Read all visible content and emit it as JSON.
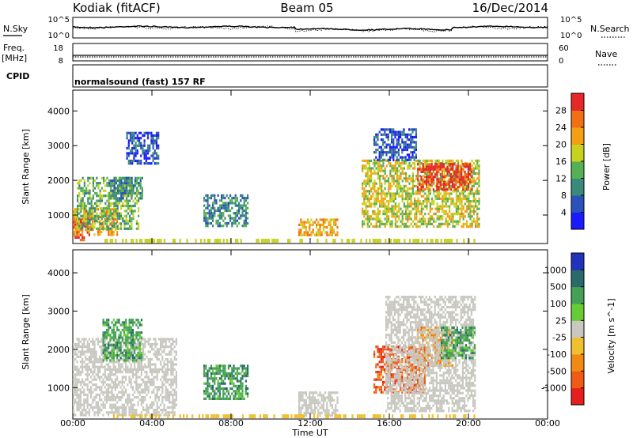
{
  "header": {
    "station": "Kodiak (fitACF)",
    "beam": "Beam 05",
    "date": "16/Dec/2014"
  },
  "status_panels": {
    "nsky_label": "N.Sky",
    "nsky_ticks": [
      "10^5",
      "10^0"
    ],
    "nsearch_label": "N.Search",
    "nsearch_ticks": [
      "10^5",
      "10^0"
    ],
    "freq_label": "Freq.",
    "freq_unit": "[MHz]",
    "freq_ticks": [
      "18",
      "8"
    ],
    "nave_label": "Nave",
    "nave_ticks": [
      "60",
      "0"
    ],
    "cpid_label": "CPID",
    "cpid_value": "normalsound (fast) 157 RF"
  },
  "chart_data": [
    {
      "type": "heatmap",
      "name": "power",
      "ylabel": "Slant Range [km]",
      "xlabel": "Time UT",
      "x_ticks": [
        "00:00",
        "04:00",
        "08:00",
        "12:00",
        "16:00",
        "20:00",
        "00:00"
      ],
      "xlim_hours": [
        0,
        24
      ],
      "y_ticks": [
        "1000",
        "2000",
        "3000",
        "4000"
      ],
      "ylim_km": [
        180,
        4600
      ],
      "colorbar_label": "Power [dB]",
      "colorbar_ticks": [
        "4",
        "8",
        "12",
        "16",
        "20",
        "24",
        "28"
      ],
      "colorbar_colors": [
        "#1a1aff",
        "#2a52b8",
        "#3a8a7a",
        "#55b055",
        "#c8d21e",
        "#f5a014",
        "#f07014",
        "#e62828"
      ],
      "regions": [
        {
          "t": [
            0.0,
            0.8
          ],
          "r": [
            250,
            900
          ],
          "level": 7
        },
        {
          "t": [
            0.0,
            2.2
          ],
          "r": [
            400,
            1200
          ],
          "level": 5
        },
        {
          "t": [
            0.2,
            3.3
          ],
          "r": [
            600,
            2100
          ],
          "level": 3
        },
        {
          "t": [
            1.8,
            3.5
          ],
          "r": [
            1500,
            2100
          ],
          "level": 2
        },
        {
          "t": [
            2.7,
            4.3
          ],
          "r": [
            2500,
            3400
          ],
          "level": 1
        },
        {
          "t": [
            6.6,
            8.8
          ],
          "r": [
            700,
            1600
          ],
          "level": 2
        },
        {
          "t": [
            11.4,
            13.4
          ],
          "r": [
            450,
            900
          ],
          "level": 5
        },
        {
          "t": [
            14.6,
            20.5
          ],
          "r": [
            700,
            2600
          ],
          "level": 4
        },
        {
          "t": [
            17.4,
            20.2
          ],
          "r": [
            1700,
            2500
          ],
          "level": 7
        },
        {
          "t": [
            15.2,
            17.4
          ],
          "r": [
            2600,
            3500
          ],
          "level": 1
        }
      ]
    },
    {
      "type": "heatmap",
      "name": "velocity",
      "ylabel": "Slant Range [km]",
      "xlabel": "Time UT",
      "x_ticks": [
        "00:00",
        "04:00",
        "08:00",
        "12:00",
        "16:00",
        "20:00",
        "00:00"
      ],
      "xlim_hours": [
        0,
        24
      ],
      "y_ticks": [
        "1000",
        "2000",
        "3000",
        "4000"
      ],
      "ylim_km": [
        180,
        4600
      ],
      "colorbar_label": "Velocity [m s^-1]",
      "colorbar_ticks": [
        "1000",
        "500",
        "100",
        "25",
        "-25",
        "-100",
        "-500",
        "-1000"
      ],
      "colorbar_colors": [
        "#2233bb",
        "#2a6a6a",
        "#44a055",
        "#66cc33",
        "#c8c8c0",
        "#f0c030",
        "#f08a14",
        "#f05a14",
        "#e61e1e"
      ],
      "regions": [
        {
          "t": [
            0.0,
            5.2
          ],
          "r": [
            300,
            2300
          ],
          "v": "ground"
        },
        {
          "t": [
            1.5,
            3.5
          ],
          "r": [
            1700,
            2800
          ],
          "v": 100
        },
        {
          "t": [
            6.6,
            8.8
          ],
          "r": [
            700,
            1600
          ],
          "v": 100
        },
        {
          "t": [
            11.4,
            13.4
          ],
          "r": [
            300,
            900
          ],
          "v": "ground"
        },
        {
          "t": [
            15.2,
            17.8
          ],
          "r": [
            900,
            2100
          ],
          "v": -300
        },
        {
          "t": [
            17.4,
            19.2
          ],
          "r": [
            1600,
            2600
          ],
          "v": -200
        },
        {
          "t": [
            15.8,
            20.3
          ],
          "r": [
            400,
            3400
          ],
          "v": "ground"
        },
        {
          "t": [
            18.6,
            20.3
          ],
          "r": [
            1800,
            2600
          ],
          "v": 150
        }
      ]
    }
  ]
}
